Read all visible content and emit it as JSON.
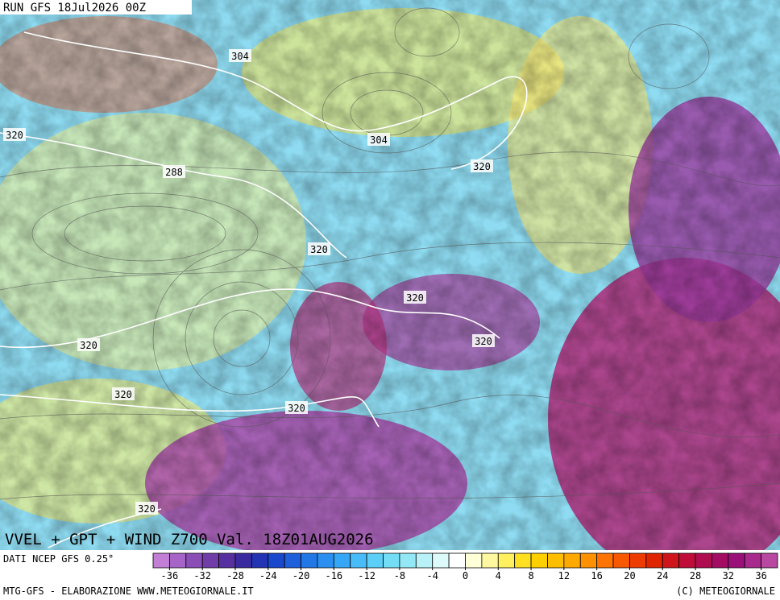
{
  "header": {
    "run": "RUN GFS 18Jul2026 00Z"
  },
  "map": {
    "title": "VVEL + GPT + WIND Z700 Val. 18Z01AUG2026",
    "contour_labels": [
      "304",
      "320",
      "288",
      "304",
      "320",
      "320",
      "320",
      "320",
      "320",
      "320",
      "320",
      "320"
    ]
  },
  "colorbar": {
    "source": "DATI NCEP GFS 0.25°",
    "range": [
      -38,
      38
    ],
    "ticks": [
      -36,
      -32,
      -28,
      -24,
      -20,
      -16,
      -12,
      -8,
      -4,
      0,
      4,
      8,
      12,
      16,
      20,
      24,
      28,
      32,
      36
    ],
    "colors": [
      "#c37fd6",
      "#a564c6",
      "#8a4fb6",
      "#6f3ca8",
      "#55309e",
      "#3a2aa0",
      "#2233b4",
      "#1a48cc",
      "#1e5fdc",
      "#2277e6",
      "#2a8ff0",
      "#36a6f6",
      "#48bcf8",
      "#5ccff8",
      "#74ddf6",
      "#94e8f6",
      "#b8f2f8",
      "#dcfafa",
      "#ffffff",
      "#ffffd8",
      "#fff8a0",
      "#fff060",
      "#ffe020",
      "#ffd000",
      "#ffbe00",
      "#ffa800",
      "#ff9000",
      "#ff7400",
      "#f85800",
      "#ee3c00",
      "#e02400",
      "#d0141c",
      "#c00c38",
      "#b00c50",
      "#a40c64",
      "#9a1078",
      "#a82a8c",
      "#b848a0"
    ]
  },
  "footer": {
    "left": "MTG-GFS - ELABORAZIONE WWW.METEOGIORNALE.IT",
    "right": "(C) METEOGIORNALE"
  }
}
